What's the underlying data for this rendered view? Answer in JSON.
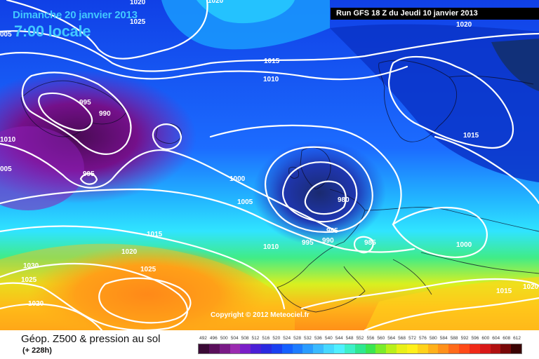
{
  "header": {
    "date": "Dimanche 20 janvier 2013",
    "time": "7:00 locale",
    "run": "Run GFS 18 Z du Jeudi 10 janvier 2013"
  },
  "copyright": "Copyright © 2012 Meteociel.fr",
  "footer": {
    "parameter": "Géop. Z500 & pression au sol",
    "forecast_hour": "(+ 228h)"
  },
  "isobars": [
    {
      "id": "l1020-nw",
      "text": "1020"
    },
    {
      "id": "l1025-n",
      "text": "1025"
    },
    {
      "id": "l1020-top",
      "text": "1020"
    },
    {
      "id": "l1020-ne",
      "text": "1020"
    },
    {
      "id": "l005-w",
      "text": "005"
    },
    {
      "id": "l1015-n",
      "text": "1015"
    },
    {
      "id": "l1010-n",
      "text": "1010"
    },
    {
      "id": "l995-a",
      "text": "995"
    },
    {
      "id": "l990-a",
      "text": "990"
    },
    {
      "id": "l1010-w",
      "text": "1010"
    },
    {
      "id": "l005-w2",
      "text": "005"
    },
    {
      "id": "l995-b",
      "text": "995"
    },
    {
      "id": "l1015-e",
      "text": "1015"
    },
    {
      "id": "l1000-c",
      "text": "1000"
    },
    {
      "id": "l1005-c",
      "text": "1005"
    },
    {
      "id": "l980",
      "text": "980"
    },
    {
      "id": "l985-c",
      "text": "985"
    },
    {
      "id": "l995-c",
      "text": "995"
    },
    {
      "id": "l990-c",
      "text": "990"
    },
    {
      "id": "l985-s",
      "text": "985"
    },
    {
      "id": "l1010-c",
      "text": "1010"
    },
    {
      "id": "l1015-w",
      "text": "1015"
    },
    {
      "id": "l1020-w",
      "text": "1020"
    },
    {
      "id": "l1000-e",
      "text": "1000"
    },
    {
      "id": "l1030-sw",
      "text": "1030"
    },
    {
      "id": "l1025-sw",
      "text": "1025"
    },
    {
      "id": "l1025-s",
      "text": "1025"
    },
    {
      "id": "l1020-sw",
      "text": "1020"
    },
    {
      "id": "l1015-se",
      "text": "1015"
    },
    {
      "id": "l1020-se",
      "text": "1020"
    }
  ],
  "scale": {
    "labels": [
      "492",
      "496",
      "500",
      "504",
      "508",
      "512",
      "516",
      "520",
      "524",
      "528",
      "532",
      "536",
      "540",
      "544",
      "548",
      "552",
      "556",
      "560",
      "564",
      "568",
      "572",
      "576",
      "580",
      "584",
      "588",
      "592",
      "596",
      "600",
      "604",
      "608",
      "612"
    ],
    "colors": [
      "#3a0a35",
      "#5a0f5a",
      "#7a1a86",
      "#9b2bb0",
      "#7a1ec8",
      "#4a1fd6",
      "#2a2ae0",
      "#1a40f0",
      "#1560ff",
      "#1e7cff",
      "#2a9cff",
      "#3abaff",
      "#46d8ff",
      "#50f0ff",
      "#3df0c8",
      "#2ee890",
      "#3ae650",
      "#7aec2a",
      "#b8f01a",
      "#e8f018",
      "#fff01a",
      "#ffd21a",
      "#ffb01a",
      "#ff901a",
      "#ff6a1a",
      "#ff4a18",
      "#f02a18",
      "#d81818",
      "#b01010",
      "#780808",
      "#3a0404"
    ]
  }
}
